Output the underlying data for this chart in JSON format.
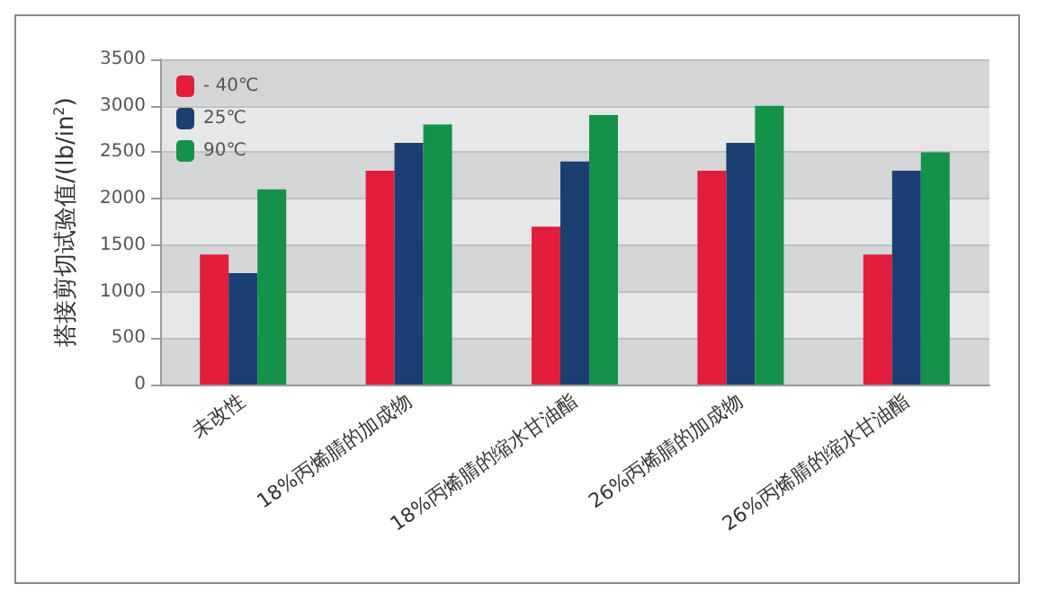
{
  "chart_data": {
    "type": "bar",
    "ylabel": "搭接剪切试验值/(lb/in$^{2}$)",
    "categories": [
      "未改性",
      "18%丙烯腈的加成物",
      "18%丙烯腈的缩水甘油酯",
      "26%丙烯腈的加成物",
      "26%丙烯腈的缩水甘油酯"
    ],
    "series": [
      {
        "name": "- 40℃",
        "color": "#e31d3c",
        "values": [
          1400,
          2300,
          1700,
          2300,
          1400
        ]
      },
      {
        "name": "25℃",
        "color": "#1b3f73",
        "values": [
          1200,
          2600,
          2400,
          2600,
          2300
        ]
      },
      {
        "name": "90℃",
        "color": "#14924a",
        "values": [
          2100,
          2800,
          2900,
          3000,
          2500
        ]
      }
    ],
    "ylim": [
      0,
      3500
    ],
    "yticks": [
      0,
      500,
      1000,
      1500,
      2000,
      2500,
      3000,
      3500
    ],
    "grid": "y",
    "legend": "top left"
  }
}
